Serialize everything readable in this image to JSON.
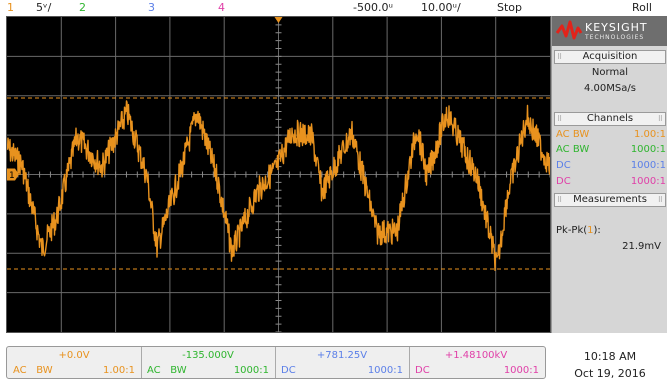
{
  "topbar": {
    "ch1_num": "1",
    "ch1_scale": "5ᵛ/",
    "ch2_num": "2",
    "ch3_num": "3",
    "ch4_num": "4",
    "time_offset": "-500.0ᵘ",
    "time_scale": "10.00ᵘ/",
    "run_state": "Stop",
    "mode": "Roll"
  },
  "colors": {
    "ch1": "#e8921e",
    "ch2": "#2fb52f",
    "ch3": "#5b7fe8",
    "ch4": "#e040a8"
  },
  "logo": {
    "text": "KEYSIGHT",
    "sub": "TECHNOLOGIES"
  },
  "acquisition": {
    "title": "Acquisition",
    "mode": "Normal",
    "rate": "4.00MSa/s"
  },
  "channels": {
    "title": "Channels",
    "rows": [
      {
        "coupling": "AC BW",
        "probe": "1.00:1"
      },
      {
        "coupling": "AC BW",
        "probe": "1000:1"
      },
      {
        "coupling": "DC",
        "probe": "1000:1"
      },
      {
        "coupling": "DC",
        "probe": "1000:1"
      }
    ]
  },
  "measurements": {
    "title": "Measurements",
    "label_prefix": "Pk-Pk(",
    "label_ch": "1",
    "label_suffix": "):",
    "value": "21.9mV"
  },
  "bottom": [
    {
      "offset": "+0.0V",
      "coupling": "AC",
      "bw": "BW",
      "probe": "1.00:1"
    },
    {
      "offset": "-135.000V",
      "coupling": "AC",
      "bw": "BW",
      "probe": "1000:1"
    },
    {
      "offset": "+781.25V",
      "coupling": "DC",
      "bw": "",
      "probe": "1000:1"
    },
    {
      "offset": "+1.48100kV",
      "coupling": "DC",
      "bw": "",
      "probe": "1000:1"
    }
  ],
  "clock": {
    "time": "10:18 AM",
    "date": "Oct 19, 2016"
  },
  "screen": {
    "ground_marker": "1"
  },
  "icons": [
    "keysight-wave-logo-icon",
    "trigger-marker-icon",
    "ground-marker-icon"
  ]
}
